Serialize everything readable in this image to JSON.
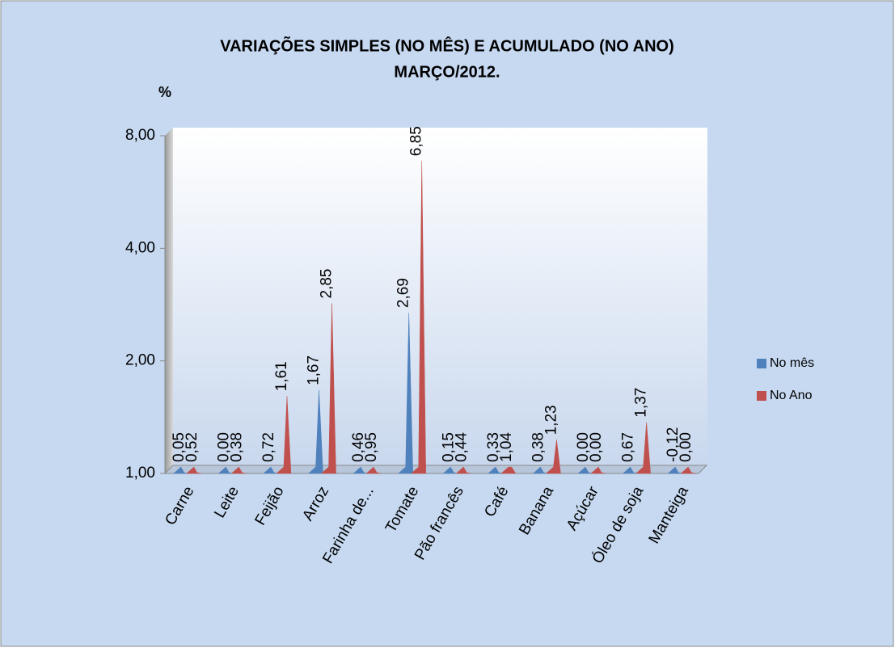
{
  "chart_data": {
    "type": "bar3d",
    "title": "VARIAÇÕES SIMPLES (NO MÊS) E ACUMULADO (NO ANO)",
    "subtitle": "MARÇO/2012.",
    "y_label": "%",
    "categories": [
      "Carne",
      "Leite",
      "Feijão",
      "Arroz",
      "Farinha de...",
      "Tomate",
      "Pão francês",
      "Café",
      "Banana",
      "Açúcar",
      "Óleo de soja",
      "Manteiga"
    ],
    "series": [
      {
        "name": "No mês",
        "color": "#4f81bd",
        "values": [
          0.05,
          0.0,
          0.72,
          1.67,
          0.46,
          2.69,
          0.15,
          0.33,
          0.38,
          0.0,
          0.67,
          -0.12
        ],
        "value_labels": [
          "0,05",
          "0,00",
          "0,72",
          "1,67",
          "0,46",
          "2,69",
          "0,15",
          "0,33",
          "0,38",
          "0,00",
          "0,67",
          "-0,12"
        ]
      },
      {
        "name": "No Ano",
        "color": "#c0504d",
        "values": [
          0.52,
          0.38,
          1.61,
          2.85,
          0.95,
          6.85,
          0.44,
          1.04,
          1.23,
          0.0,
          1.37,
          0.0
        ],
        "value_labels": [
          "0,52",
          "0,38",
          "1,61",
          "2,85",
          "0,95",
          "6,85",
          "0,44",
          "1,04",
          "1,23",
          "0,00",
          "1,37",
          "0,00"
        ]
      }
    ],
    "ylim": [
      1,
      8
    ],
    "log_scale": true,
    "yticks": [
      {
        "value": 1,
        "label": "1,00"
      },
      {
        "value": 2,
        "label": "2,00"
      },
      {
        "value": 4,
        "label": "4,00"
      },
      {
        "value": 8,
        "label": "8,00"
      }
    ],
    "legend": "right"
  }
}
